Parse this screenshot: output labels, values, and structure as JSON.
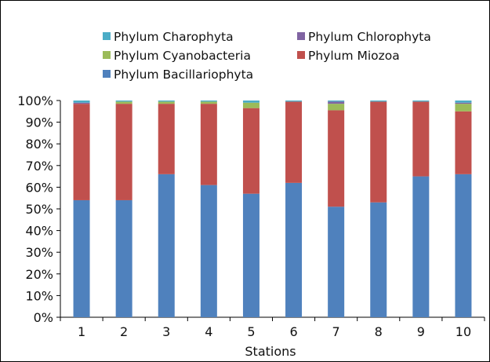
{
  "chart_data": {
    "type": "bar",
    "stacked": true,
    "percent": true,
    "xlabel": "Stations",
    "ylabel": "",
    "ylim": [
      0,
      100
    ],
    "yticks": [
      "0%",
      "10%",
      "20%",
      "30%",
      "40%",
      "50%",
      "60%",
      "70%",
      "80%",
      "90%",
      "100%"
    ],
    "categories": [
      "1",
      "2",
      "3",
      "4",
      "5",
      "6",
      "7",
      "8",
      "9",
      "10"
    ],
    "legend_position": "top",
    "series": [
      {
        "name": "Phylum Bacillariophyta",
        "color": "#4f81bd",
        "values": [
          54,
          54,
          66,
          61,
          57,
          62,
          51,
          53,
          65,
          66
        ]
      },
      {
        "name": "Phylum Miozoa",
        "color": "#c0504d",
        "values": [
          44.5,
          44.5,
          32.5,
          37.5,
          39.5,
          37.5,
          44.5,
          46.5,
          34.5,
          29
        ]
      },
      {
        "name": "Phylum Cyanobacteria",
        "color": "#9bbb59",
        "values": [
          0,
          1,
          1,
          1,
          2.5,
          0,
          3,
          0,
          0,
          3.5
        ]
      },
      {
        "name": "Phylum Chlorophyta",
        "color": "#8064a2",
        "values": [
          0.5,
          0,
          0,
          0,
          0,
          0,
          1,
          0,
          0,
          0.5
        ]
      },
      {
        "name": "Phylum Charophyta",
        "color": "#4bacc6",
        "values": [
          1,
          0.5,
          0.5,
          0.5,
          1,
          0.5,
          0.5,
          0.5,
          0.5,
          1
        ]
      }
    ],
    "legend_order": [
      "Phylum Charophyta",
      "Phylum Chlorophyta",
      "Phylum Cyanobacteria",
      "Phylum Miozoa",
      "Phylum Bacillariophyta"
    ]
  }
}
